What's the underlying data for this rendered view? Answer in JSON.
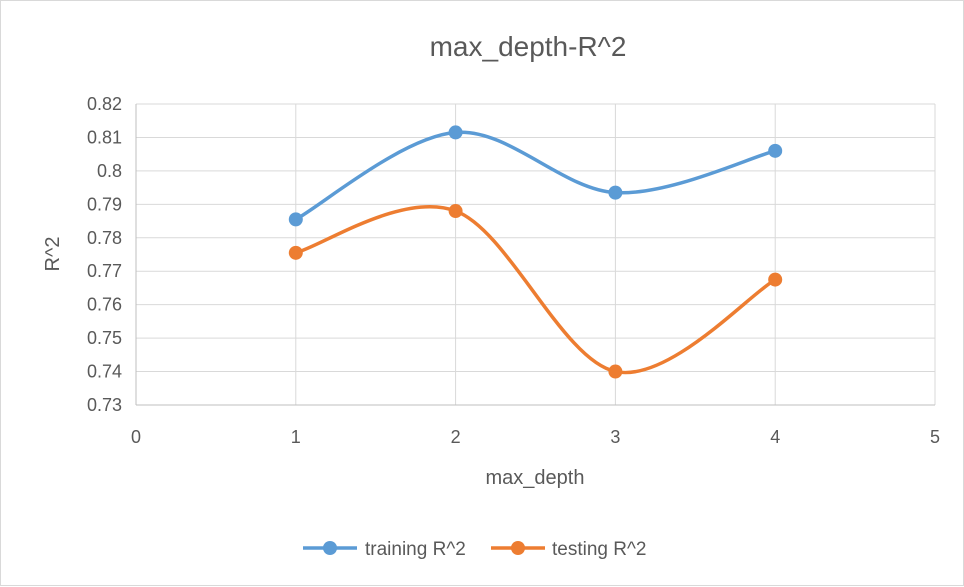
{
  "chart_data": {
    "type": "scatter",
    "title": "max_depth-R^2",
    "xlabel": "max_depth",
    "ylabel": "R^2",
    "xlim": [
      0,
      5
    ],
    "ylim": [
      0.73,
      0.82
    ],
    "x_ticks": [
      "0",
      "1",
      "2",
      "3",
      "4",
      "5"
    ],
    "y_ticks": [
      "0.73",
      "0.74",
      "0.75",
      "0.76",
      "0.77",
      "0.78",
      "0.79",
      "0.8",
      "0.81",
      "0.82"
    ],
    "grid": true,
    "smooth_lines": true,
    "legend_position": "bottom",
    "series": [
      {
        "name": "training R^2",
        "color": "#5b9bd5",
        "x": [
          1,
          2,
          3,
          4
        ],
        "y": [
          0.7855,
          0.8115,
          0.7935,
          0.806
        ]
      },
      {
        "name": "testing R^2",
        "color": "#ed7d31",
        "x": [
          1,
          2,
          3,
          4
        ],
        "y": [
          0.7755,
          0.788,
          0.74,
          0.7675
        ]
      }
    ]
  }
}
